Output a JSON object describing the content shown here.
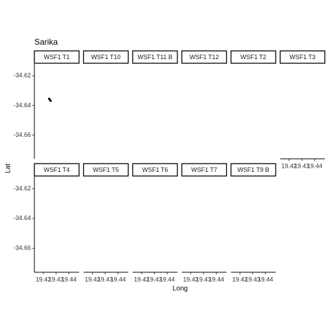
{
  "chart_data": {
    "type": "scatter",
    "title": "Sarika",
    "x_label": "Long",
    "y_label": "Lat",
    "color": "#000000",
    "xlim": [
      19.413,
      19.448
    ],
    "ylim": [
      -34.676,
      -34.612
    ],
    "xticks": [
      19.42,
      19.43,
      19.44
    ],
    "yticks": [
      -34.62,
      -34.64,
      -34.66
    ],
    "panels": [
      {
        "name": "WSF1 T1",
        "x": [
          19.4245,
          19.425,
          19.4254,
          19.4258
        ],
        "y": [
          -34.6355,
          -34.636,
          -34.6365,
          -34.637
        ]
      },
      {
        "name": "WSF1 T10"
      },
      {
        "name": "WSF1 T11 B"
      },
      {
        "name": "WSF1 T12"
      },
      {
        "name": "WSF1 T2"
      },
      {
        "name": "WSF1 T3"
      },
      {
        "name": "WSF1 T4"
      },
      {
        "name": "WSF1 T5"
      },
      {
        "name": "WSF1 T6"
      },
      {
        "name": "WSF1 T7"
      },
      {
        "name": "WSF1 T9 B"
      }
    ]
  }
}
